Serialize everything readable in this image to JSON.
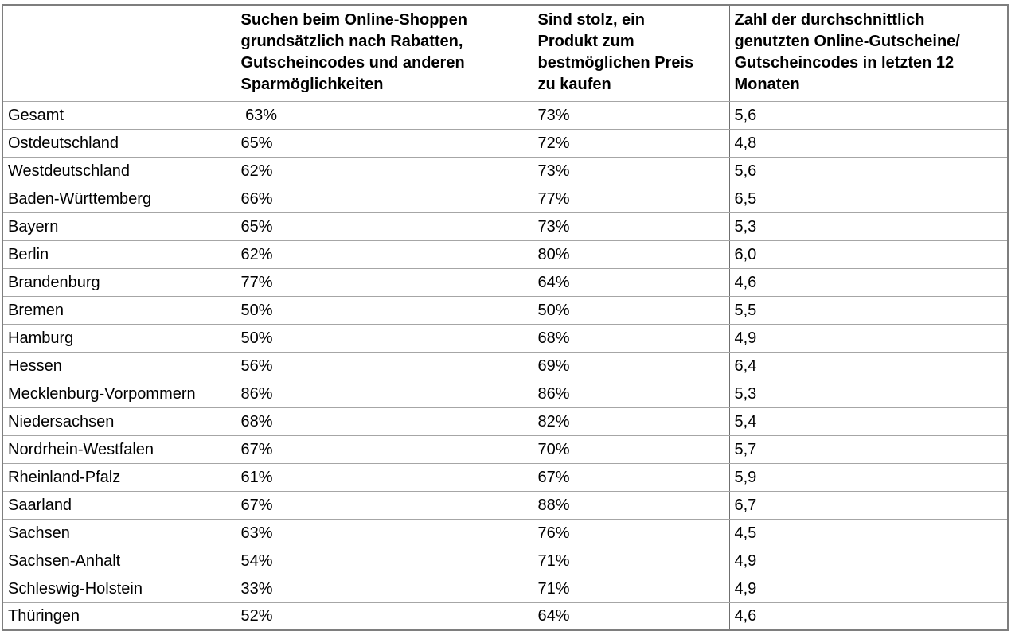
{
  "table": {
    "columns": [
      {
        "label": ""
      },
      {
        "label": "Suchen beim Online-Shoppen\ngrundsätzlich nach Rabatten,\nGutscheincodes und anderen\nSparmöglichkeiten"
      },
      {
        "label": "Sind stolz, ein\nProdukt zum\nbestmöglichen Preis\nzu kaufen"
      },
      {
        "label": "Zahl der durchschnittlich\ngenutzten Online-Gutscheine/\nGutscheincodes in letzten 12\nMonaten"
      }
    ],
    "rows": [
      {
        "region": "Gesamt",
        "discount_search": " 63%",
        "proud_best_price": "73%",
        "avg_vouchers": "5,6"
      },
      {
        "region": "Ostdeutschland",
        "discount_search": "65%",
        "proud_best_price": "72%",
        "avg_vouchers": "4,8"
      },
      {
        "region": "Westdeutschland",
        "discount_search": "62%",
        "proud_best_price": "73%",
        "avg_vouchers": "5,6"
      },
      {
        "region": "Baden-Württemberg",
        "discount_search": "66%",
        "proud_best_price": "77%",
        "avg_vouchers": "6,5"
      },
      {
        "region": "Bayern",
        "discount_search": "65%",
        "proud_best_price": "73%",
        "avg_vouchers": "5,3"
      },
      {
        "region": "Berlin",
        "discount_search": "62%",
        "proud_best_price": "80%",
        "avg_vouchers": "6,0"
      },
      {
        "region": "Brandenburg",
        "discount_search": "77%",
        "proud_best_price": "64%",
        "avg_vouchers": "4,6"
      },
      {
        "region": "Bremen",
        "discount_search": "50%",
        "proud_best_price": "50%",
        "avg_vouchers": "5,5"
      },
      {
        "region": "Hamburg",
        "discount_search": "50%",
        "proud_best_price": "68%",
        "avg_vouchers": "4,9"
      },
      {
        "region": "Hessen",
        "discount_search": "56%",
        "proud_best_price": "69%",
        "avg_vouchers": "6,4"
      },
      {
        "region": "Mecklenburg-Vorpommern",
        "discount_search": "86%",
        "proud_best_price": "86%",
        "avg_vouchers": "5,3"
      },
      {
        "region": "Niedersachsen",
        "discount_search": "68%",
        "proud_best_price": "82%",
        "avg_vouchers": "5,4"
      },
      {
        "region": "Nordrhein-Westfalen",
        "discount_search": "67%",
        "proud_best_price": "70%",
        "avg_vouchers": "5,7"
      },
      {
        "region": "Rheinland-Pfalz",
        "discount_search": "61%",
        "proud_best_price": "67%",
        "avg_vouchers": "5,9"
      },
      {
        "region": "Saarland",
        "discount_search": "67%",
        "proud_best_price": "88%",
        "avg_vouchers": "6,7"
      },
      {
        "region": "Sachsen",
        "discount_search": "63%",
        "proud_best_price": "76%",
        "avg_vouchers": "4,5"
      },
      {
        "region": "Sachsen-Anhalt",
        "discount_search": "54%",
        "proud_best_price": "71%",
        "avg_vouchers": "4,9"
      },
      {
        "region": "Schleswig-Holstein",
        "discount_search": "33%",
        "proud_best_price": "71%",
        "avg_vouchers": "4,9"
      },
      {
        "region": "Thüringen",
        "discount_search": "52%",
        "proud_best_price": "64%",
        "avg_vouchers": "4,6"
      }
    ],
    "border_colors": {
      "outer": "#7e7e7e",
      "horizontal_rules": "#a6a6a6",
      "vertical_rules": "#6f6f6f"
    }
  },
  "chart_data": {
    "type": "table",
    "title": "",
    "columns": [
      "Region",
      "Suchen beim Online-Shoppen grundsätzlich nach Rabatten, Gutscheincodes und anderen Sparmöglichkeiten (%)",
      "Sind stolz, ein Produkt zum bestmöglichen Preis zu kaufen (%)",
      "Zahl der durchschnittlich genutzten Online-Gutscheine/Gutscheincodes in letzten 12 Monaten"
    ],
    "rows": [
      [
        "Gesamt",
        63,
        73,
        5.6
      ],
      [
        "Ostdeutschland",
        65,
        72,
        4.8
      ],
      [
        "Westdeutschland",
        62,
        73,
        5.6
      ],
      [
        "Baden-Württemberg",
        66,
        77,
        6.5
      ],
      [
        "Bayern",
        65,
        73,
        5.3
      ],
      [
        "Berlin",
        62,
        80,
        6.0
      ],
      [
        "Brandenburg",
        77,
        64,
        4.6
      ],
      [
        "Bremen",
        50,
        50,
        5.5
      ],
      [
        "Hamburg",
        50,
        68,
        4.9
      ],
      [
        "Hessen",
        56,
        69,
        6.4
      ],
      [
        "Mecklenburg-Vorpommern",
        86,
        86,
        5.3
      ],
      [
        "Niedersachsen",
        68,
        82,
        5.4
      ],
      [
        "Nordrhein-Westfalen",
        67,
        70,
        5.7
      ],
      [
        "Rheinland-Pfalz",
        61,
        67,
        5.9
      ],
      [
        "Saarland",
        67,
        88,
        6.7
      ],
      [
        "Sachsen",
        63,
        76,
        4.5
      ],
      [
        "Sachsen-Anhalt",
        54,
        71,
        4.9
      ],
      [
        "Schleswig-Holstein",
        33,
        71,
        4.9
      ],
      [
        "Thüringen",
        52,
        64,
        4.6
      ]
    ]
  }
}
